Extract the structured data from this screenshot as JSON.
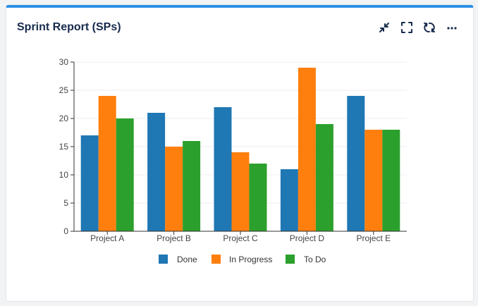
{
  "widget": {
    "title": "Sprint Report (SPs)",
    "accent_color": "#2d8fe6",
    "toolbar": [
      "collapse-icon",
      "expand-icon",
      "refresh-icon",
      "more-icon"
    ]
  },
  "chart_data": {
    "type": "bar",
    "title": "",
    "xlabel": "",
    "ylabel": "",
    "ylim": [
      0,
      30
    ],
    "yticks": [
      0,
      5,
      10,
      15,
      20,
      25,
      30
    ],
    "categories": [
      "Project A",
      "Project B",
      "Project C",
      "Project D",
      "Project E"
    ],
    "series": [
      {
        "name": "Done",
        "color": "#1f77b4",
        "values": [
          17,
          21,
          22,
          11,
          24
        ]
      },
      {
        "name": "In Progress",
        "color": "#ff7f0e",
        "values": [
          24,
          15,
          14,
          29,
          18
        ]
      },
      {
        "name": "To Do",
        "color": "#2ca02c",
        "values": [
          20,
          16,
          12,
          19,
          18
        ]
      }
    ],
    "legend": "bottom",
    "grid": true
  }
}
